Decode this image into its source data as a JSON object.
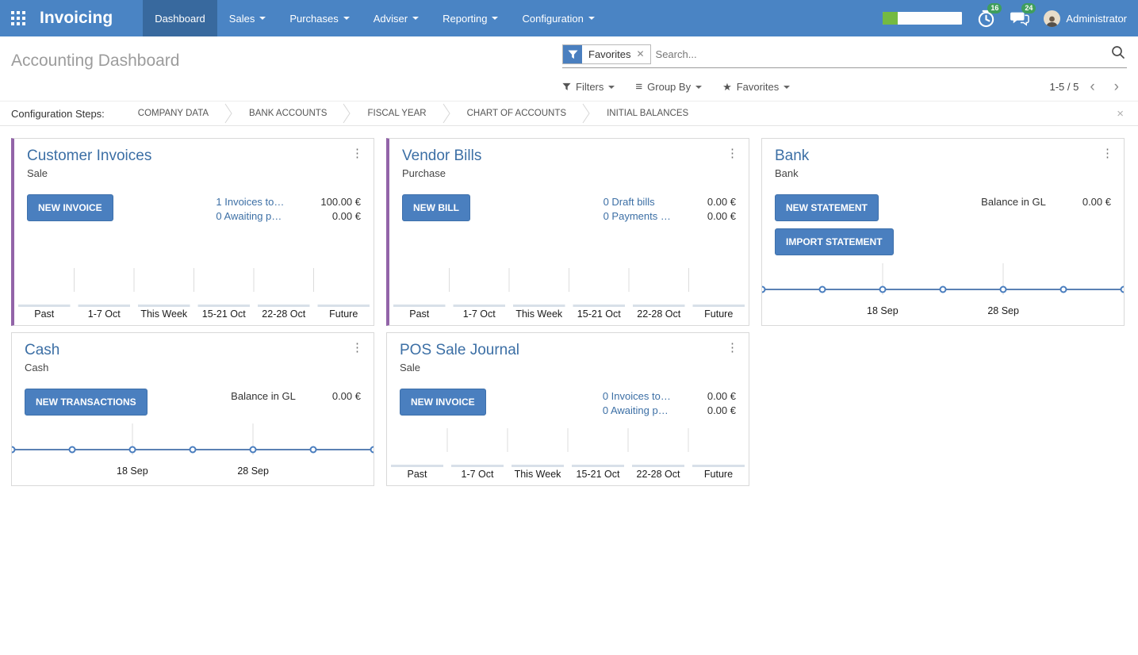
{
  "colors": {
    "header": "#4a84c4",
    "header_active": "#38699e",
    "primary_button": "#4a7fbf",
    "accent_purple": "#9264a8",
    "link_blue": "#3c6fa5",
    "badge_green": "#3f9e5d",
    "progress_green": "#74ba41"
  },
  "header": {
    "app_name": "Invoicing",
    "menu": [
      {
        "label": "Dashboard",
        "active": true,
        "dropdown": false
      },
      {
        "label": "Sales",
        "active": false,
        "dropdown": true
      },
      {
        "label": "Purchases",
        "active": false,
        "dropdown": true
      },
      {
        "label": "Adviser",
        "active": false,
        "dropdown": true
      },
      {
        "label": "Reporting",
        "active": false,
        "dropdown": true
      },
      {
        "label": "Configuration",
        "active": false,
        "dropdown": true
      }
    ],
    "systray": {
      "activities_badge": "16",
      "messages_badge": "24",
      "user_name": "Administrator"
    }
  },
  "control_panel": {
    "title": "Accounting Dashboard",
    "search": {
      "facet_label": "Favorites",
      "facet_remove": "✕",
      "placeholder": "Search..."
    },
    "filters_label": "Filters",
    "group_by_label": "Group By",
    "favorites_label": "Favorites",
    "pager": {
      "value": "1-5 / 5",
      "prev": "‹",
      "next": "›"
    }
  },
  "config_bar": {
    "label": "Configuration Steps:",
    "steps": [
      "COMPANY DATA",
      "BANK ACCOUNTS",
      "FISCAL YEAR",
      "CHART OF ACCOUNTS",
      "INITIAL BALANCES"
    ],
    "close": "×"
  },
  "cards": [
    {
      "title": "Customer Invoices",
      "subtitle": "Sale",
      "accent": true,
      "buttons": [
        "NEW INVOICE"
      ],
      "rows": [
        {
          "label": "1 Invoices to…",
          "amount": "100.00 €",
          "is_link": true
        },
        {
          "label": "0 Awaiting p…",
          "amount": "0.00 €",
          "is_link": true
        }
      ],
      "chart": {
        "type": "bar",
        "categories": [
          "Past",
          "1-7 Oct",
          "This Week",
          "15-21 Oct",
          "22-28 Oct",
          "Future"
        ],
        "values": [
          0,
          0,
          0,
          0,
          0,
          0
        ]
      }
    },
    {
      "title": "Vendor Bills",
      "subtitle": "Purchase",
      "accent": true,
      "buttons": [
        "NEW BILL"
      ],
      "rows": [
        {
          "label": "0 Draft bills",
          "amount": "0.00 €",
          "is_link": true
        },
        {
          "label": "0 Payments …",
          "amount": "0.00 €",
          "is_link": true
        }
      ],
      "chart": {
        "type": "bar",
        "categories": [
          "Past",
          "1-7 Oct",
          "This Week",
          "15-21 Oct",
          "22-28 Oct",
          "Future"
        ],
        "values": [
          0,
          0,
          0,
          0,
          0,
          0
        ]
      }
    },
    {
      "title": "Bank",
      "subtitle": "Bank",
      "accent": false,
      "buttons": [
        "NEW STATEMENT",
        "IMPORT STATEMENT"
      ],
      "rows": [
        {
          "label": "Balance in GL",
          "amount": "0.00 €",
          "is_link": false
        }
      ],
      "chart": {
        "type": "line",
        "x_labels": [
          "18 Sep",
          "28 Sep"
        ],
        "values": [
          0,
          0,
          0,
          0,
          0,
          0,
          0
        ]
      }
    },
    {
      "title": "Cash",
      "subtitle": "Cash",
      "accent": false,
      "buttons": [
        "NEW TRANSACTIONS"
      ],
      "rows": [
        {
          "label": "Balance in GL",
          "amount": "0.00 €",
          "is_link": false
        }
      ],
      "chart": {
        "type": "line",
        "x_labels": [
          "18 Sep",
          "28 Sep"
        ],
        "values": [
          0,
          0,
          0,
          0,
          0,
          0,
          0
        ]
      }
    },
    {
      "title": "POS Sale Journal",
      "subtitle": "Sale",
      "accent": false,
      "buttons": [
        "NEW INVOICE"
      ],
      "rows": [
        {
          "label": "0 Invoices to…",
          "amount": "0.00 €",
          "is_link": true
        },
        {
          "label": "0 Awaiting p…",
          "amount": "0.00 €",
          "is_link": true
        }
      ],
      "chart": {
        "type": "bar",
        "categories": [
          "Past",
          "1-7 Oct",
          "This Week",
          "15-21 Oct",
          "22-28 Oct",
          "Future"
        ],
        "values": [
          0,
          0,
          0,
          0,
          0,
          0
        ]
      }
    }
  ]
}
